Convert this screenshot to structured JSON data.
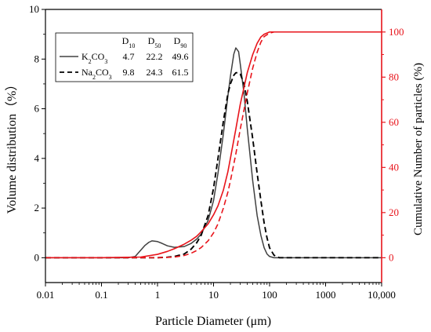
{
  "chart_data": {
    "type": "line",
    "xlabel": "Particle Diameter (μm)",
    "ylabel_left": "Volume distribution（%）",
    "ylabel_right": "Cumulative Number of particles (%)",
    "xscale": "log",
    "xlim": [
      0.01,
      10000
    ],
    "ylim_left": [
      -1,
      10
    ],
    "ylim_right": [
      -11,
      110
    ],
    "x_ticks": [
      0.01,
      0.1,
      1,
      10,
      100,
      1000,
      10000
    ],
    "x_tick_labels": [
      "0.01",
      "0.1",
      "1",
      "10",
      "100",
      "1000",
      "10,000"
    ],
    "y_left_ticks": [
      0,
      2,
      4,
      6,
      8,
      10
    ],
    "y_left_tick_labels": [
      "0",
      "2",
      "4",
      "6",
      "8",
      "10"
    ],
    "y_right_ticks": [
      0,
      20,
      40,
      60,
      80,
      100
    ],
    "y_right_tick_labels": [
      "0",
      "20",
      "40",
      "60",
      "80",
      "100"
    ],
    "grid": false,
    "legend": {
      "placement": "top-left",
      "header": [
        "D10",
        "D50",
        "D90"
      ],
      "rows": [
        {
          "label": "K2CO3",
          "values": [
            "4.7",
            "22.2",
            "49.6"
          ]
        },
        {
          "label": "Na2CO3",
          "values": [
            "9.8",
            "24.3",
            "61.5"
          ]
        }
      ]
    },
    "colors": {
      "distribution": "#404040",
      "cumulative": "#e8141b",
      "dashed_dist": "#000000"
    },
    "series": [
      {
        "name": "K2CO3",
        "axis": "left",
        "color": "#404040",
        "dash": "solid",
        "x": [
          0.01,
          0.1,
          0.3,
          0.4,
          0.5,
          0.6,
          0.7,
          0.8,
          1.0,
          1.2,
          1.5,
          2,
          3,
          4,
          5,
          6,
          8,
          10,
          12,
          15,
          18,
          20,
          23,
          25,
          28,
          30,
          35,
          40,
          50,
          60,
          70,
          80,
          90,
          100,
          120,
          150,
          1000,
          10000
        ],
        "y": [
          0,
          0,
          0,
          0.05,
          0.3,
          0.5,
          0.62,
          0.68,
          0.65,
          0.58,
          0.48,
          0.42,
          0.45,
          0.58,
          0.75,
          0.95,
          1.5,
          2.3,
          3.4,
          5.0,
          6.5,
          7.3,
          8.2,
          8.45,
          8.3,
          7.8,
          6.6,
          5.2,
          3.1,
          1.7,
          0.9,
          0.4,
          0.15,
          0.05,
          0,
          0,
          0,
          0
        ]
      },
      {
        "name": "Na2CO3",
        "axis": "left",
        "color": "#000000",
        "dash": "dashed",
        "x": [
          0.01,
          0.1,
          0.5,
          0.8,
          1.0,
          1.5,
          2,
          3,
          4,
          5,
          6,
          8,
          10,
          12,
          15,
          18,
          20,
          23,
          25,
          28,
          30,
          35,
          40,
          50,
          60,
          70,
          80,
          90,
          100,
          120,
          150,
          200,
          1000,
          10000
        ],
        "y": [
          0,
          0,
          0,
          0,
          0,
          0.02,
          0.05,
          0.15,
          0.35,
          0.6,
          0.9,
          1.7,
          2.8,
          4.0,
          5.5,
          6.6,
          7.0,
          7.35,
          7.45,
          7.45,
          7.4,
          7.0,
          6.3,
          4.8,
          3.4,
          2.3,
          1.4,
          0.8,
          0.4,
          0.1,
          0,
          0,
          0,
          0
        ]
      },
      {
        "name": "K2CO3 cumulative",
        "axis": "right",
        "color": "#e8141b",
        "dash": "solid",
        "x": [
          0.01,
          0.1,
          0.5,
          1.0,
          1.5,
          2,
          3,
          4,
          5,
          6,
          8,
          10,
          12,
          15,
          18,
          20,
          25,
          30,
          40,
          50,
          60,
          70,
          80,
          100,
          120,
          150,
          1000,
          10000
        ],
        "y": [
          0,
          0,
          0.3,
          1.5,
          2.8,
          4.0,
          6.0,
          7.8,
          9.5,
          11.5,
          15.0,
          19.0,
          23.0,
          30.0,
          38.0,
          44.0,
          57.0,
          68.0,
          82.0,
          90.0,
          95.0,
          97.8,
          99.0,
          100,
          100,
          100,
          100,
          100
        ]
      },
      {
        "name": "Na2CO3 cumulative",
        "axis": "right",
        "color": "#e8141b",
        "dash": "dashed",
        "x": [
          0.01,
          0.1,
          1.0,
          2,
          3,
          4,
          5,
          6,
          8,
          10,
          12,
          15,
          18,
          20,
          25,
          30,
          40,
          50,
          60,
          70,
          80,
          100,
          120,
          150,
          1000,
          10000
        ],
        "y": [
          0,
          0,
          0,
          0.3,
          1.0,
          2.0,
          3.2,
          4.5,
          7.5,
          11.0,
          15.0,
          22.0,
          29.0,
          34.0,
          46.0,
          57.0,
          73.0,
          84.0,
          91.0,
          95.5,
          98.0,
          99.5,
          100,
          100,
          100,
          100
        ]
      }
    ]
  }
}
